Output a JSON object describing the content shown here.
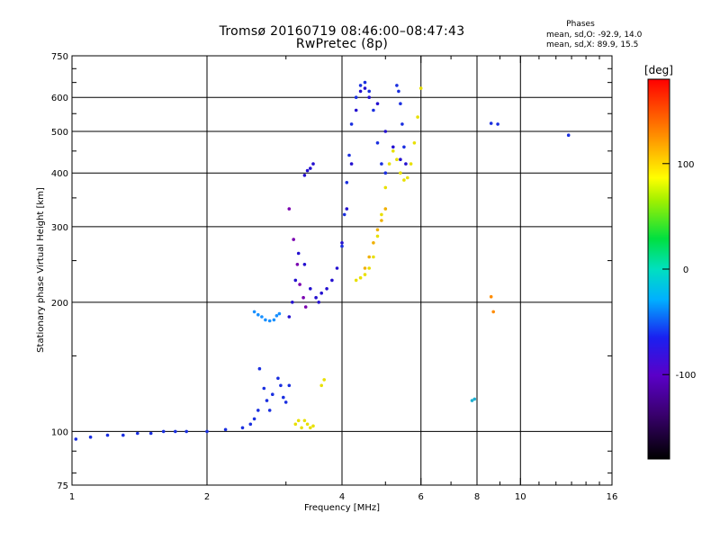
{
  "title": "Tromsø 20160719 08:46:00–08:47:43",
  "subtitle": "RwPretec (8p)",
  "phases": {
    "title": "Phases",
    "o_line": "mean, sd,O: -92.9, 14.0",
    "x_line": "mean, sd,X:  89.9, 15.5"
  },
  "colorbar": {
    "title": "[deg]",
    "ticks": [
      "100",
      "0",
      "-100"
    ]
  },
  "chart_data": {
    "type": "scatter",
    "xlabel": "Frequency [MHz]",
    "ylabel": "Stationary phase Virtual Height [km]",
    "x_scale": "log",
    "y_scale": "log",
    "xlim": [
      1,
      16
    ],
    "ylim": [
      75,
      750
    ],
    "x_ticks": [
      "1",
      "2",
      "4",
      "6",
      "8",
      "10",
      "16"
    ],
    "y_ticks": [
      "75",
      "100",
      "200",
      "300",
      "400",
      "500",
      "600",
      "750"
    ],
    "grid": true,
    "colorbar_range": [
      -180,
      180
    ],
    "series": [
      {
        "color": "#1a2fe0",
        "x": [
          1.02,
          1.1,
          1.2,
          1.3,
          1.4,
          1.5,
          1.6,
          1.7,
          1.8,
          2.0,
          2.2,
          2.4,
          2.5,
          2.55,
          2.6
        ],
        "y": [
          96,
          97,
          98,
          98,
          99,
          99,
          100,
          100,
          100,
          100,
          101,
          102,
          104,
          107,
          112
        ]
      },
      {
        "color": "#1a2fe0",
        "x": [
          2.62,
          2.68,
          2.72,
          2.76,
          2.8,
          2.88,
          2.92,
          2.96,
          3.0,
          3.05
        ],
        "y": [
          140,
          126,
          118,
          112,
          122,
          133,
          128,
          120,
          117,
          128
        ]
      },
      {
        "color": "#1890ff",
        "x": [
          2.55,
          2.6,
          2.65,
          2.7,
          2.76,
          2.82,
          2.86,
          2.9
        ],
        "y": [
          190,
          187,
          185,
          182,
          181,
          182,
          186,
          188
        ]
      },
      {
        "color": "#e8e000",
        "x": [
          3.15,
          3.2,
          3.25,
          3.3,
          3.35,
          3.4,
          3.45,
          3.6,
          3.65
        ],
        "y": [
          104,
          106,
          102,
          106,
          104,
          102,
          103,
          128,
          132
        ]
      },
      {
        "color": "#2410d0",
        "x": [
          3.05,
          3.1,
          3.15,
          3.2,
          3.3,
          3.4,
          3.5,
          3.55,
          3.6,
          3.7,
          3.8,
          3.9,
          4.0,
          4.1,
          4.2,
          4.3,
          4.4,
          4.5,
          4.6,
          4.8,
          5.0,
          5.2,
          5.4,
          5.55
        ],
        "y": [
          185,
          200,
          225,
          260,
          245,
          215,
          205,
          200,
          210,
          215,
          225,
          240,
          275,
          330,
          420,
          560,
          620,
          630,
          600,
          580,
          500,
          460,
          430,
          420
        ]
      },
      {
        "color": "#2410d0",
        "x": [
          3.3,
          3.35,
          3.4,
          3.45
        ],
        "y": [
          395,
          405,
          410,
          420
        ]
      },
      {
        "color": "#7a00b0",
        "x": [
          3.05,
          3.12,
          3.18,
          3.22,
          3.28,
          3.32
        ],
        "y": [
          330,
          280,
          245,
          220,
          205,
          195
        ]
      },
      {
        "color": "#1a2fe0",
        "x": [
          4.0,
          4.05,
          4.1,
          4.15,
          4.2,
          4.3,
          4.4,
          4.5,
          4.6,
          4.7,
          4.8,
          4.9,
          5.0
        ],
        "y": [
          270,
          320,
          380,
          440,
          520,
          600,
          640,
          650,
          620,
          560,
          470,
          420,
          400
        ]
      },
      {
        "color": "#1a2fe0",
        "x": [
          5.3,
          5.35,
          5.4,
          5.45,
          5.5
        ],
        "y": [
          640,
          620,
          580,
          520,
          460
        ]
      },
      {
        "color": "#e8e000",
        "x": [
          4.3,
          4.4,
          4.5,
          4.6,
          4.7,
          4.8,
          4.9,
          5.0,
          5.1,
          5.2,
          5.3,
          5.4,
          5.5,
          5.6,
          5.7,
          5.8,
          5.9,
          6.0
        ],
        "y": [
          225,
          228,
          232,
          240,
          255,
          285,
          320,
          370,
          420,
          450,
          430,
          400,
          385,
          390,
          420,
          470,
          540,
          630
        ]
      },
      {
        "color": "#f0b000",
        "x": [
          4.5,
          4.6,
          4.7,
          4.8,
          4.9,
          5.0
        ],
        "y": [
          240,
          255,
          275,
          295,
          310,
          330
        ]
      },
      {
        "color": "#1a2fe0",
        "x": [
          8.6,
          8.9,
          12.8
        ],
        "y": [
          522,
          520,
          490
        ]
      },
      {
        "color": "#ff8c00",
        "x": [
          8.6,
          8.7
        ],
        "y": [
          206,
          190
        ]
      },
      {
        "color": "#20b0d0",
        "x": [
          7.8,
          7.9
        ],
        "y": [
          118,
          119
        ]
      }
    ]
  }
}
